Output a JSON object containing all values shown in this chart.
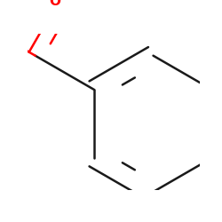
{
  "background_color": "#ffffff",
  "bond_color": "#1a1a1a",
  "oxygen_color": "#ff0000",
  "nitrogen_color": "#0000cc",
  "bond_width": 1.8,
  "font_size_N": 11,
  "font_size_O": 11,
  "font_size_CH3": 9,
  "figsize": [
    2.5,
    2.5
  ],
  "dpi": 100
}
